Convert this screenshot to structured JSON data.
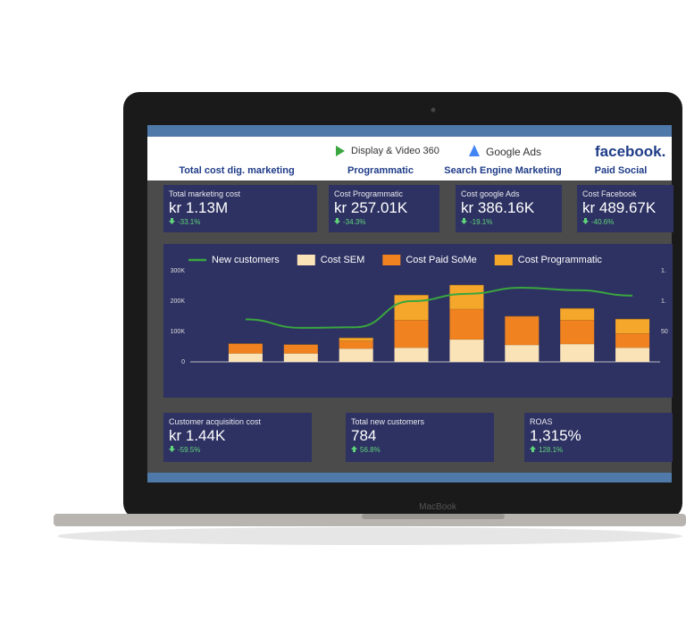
{
  "header": {
    "logos": [
      "Display & Video 360",
      "Google Ads",
      "facebook."
    ],
    "columns": [
      "Total cost dig. marketing",
      "Programmatic",
      "Search Engine Marketing",
      "Paid Social"
    ]
  },
  "kpis": [
    {
      "label": "Total marketing cost",
      "value": "kr 1.13M",
      "change": "-33.1%"
    },
    {
      "label": "Cost Programmatic",
      "value": "kr 257.01K",
      "change": "-34.3%"
    },
    {
      "label": "Cost google Ads",
      "value": "kr 386.16K",
      "change": "-19.1%"
    },
    {
      "label": "Cost Facebook",
      "value": "kr 489.67K",
      "change": "-40.6%"
    },
    {
      "label": "Customer acquisition cost",
      "value": "kr 1.44K",
      "change": "-59.5%"
    },
    {
      "label": "Total new customers",
      "value": "784",
      "change": "56.8%"
    },
    {
      "label": "ROAS",
      "value": "1,315%",
      "change": "128.1%"
    }
  ],
  "device_label": "MacBook",
  "chart_data": {
    "type": "bar",
    "categories": [
      null,
      null,
      null,
      null,
      null,
      null,
      null,
      null
    ],
    "series": [
      {
        "name": "New customers",
        "type": "line",
        "axis": "y2",
        "color": "#3aa63f",
        "values": [
          70,
          56,
          57,
          100,
          112,
          122,
          118,
          109
        ]
      },
      {
        "name": "Cost SEM",
        "color": "#fbe3b8",
        "values": [
          28000,
          28000,
          44000,
          47000,
          74000,
          56000,
          59000,
          47000
        ]
      },
      {
        "name": "Cost Paid SoMe",
        "color": "#f0821f",
        "values": [
          32000,
          29000,
          26000,
          91000,
          100000,
          94000,
          79000,
          47000
        ]
      },
      {
        "name": "Cost Programmatic",
        "color": "#f4a72a",
        "values": [
          0,
          0,
          9000,
          82000,
          79000,
          0,
          38000,
          47000
        ]
      }
    ],
    "ylim": [
      0,
      300000
    ],
    "yticks": [
      0,
      {
        "value": 100000,
        "label": "100K"
      },
      {
        "value": 200000,
        "label": "200K"
      },
      {
        "value": 300000,
        "label": "300K"
      }
    ],
    "y2lim": [
      0,
      150
    ],
    "y2ticks": [
      50,
      {
        "value": 100,
        "label": "1."
      },
      {
        "value": 150,
        "label": "1."
      }
    ],
    "grid": false
  }
}
